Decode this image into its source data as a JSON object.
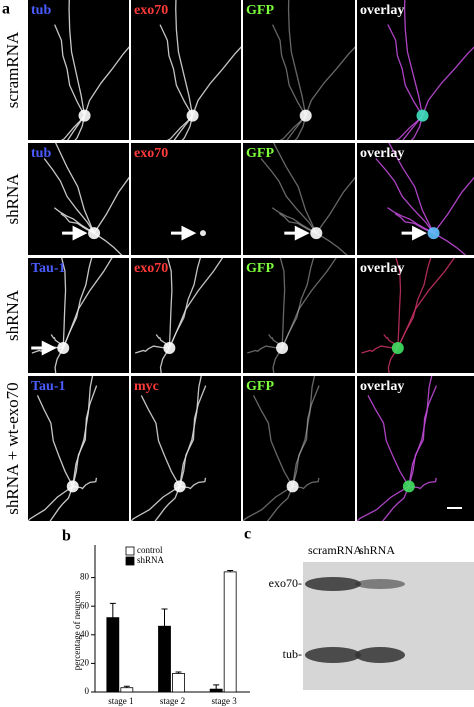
{
  "panel_a": {
    "label": "a",
    "rows": [
      {
        "label": "scramRNA",
        "channels": [
          "tub",
          "exo70",
          "GFP",
          "overlay"
        ]
      },
      {
        "label": "shRNA",
        "channels": [
          "tub",
          "exo70",
          "GFP",
          "overlay"
        ]
      },
      {
        "label": "shRNA",
        "channels": [
          "Tau-1",
          "exo70",
          "GFP",
          "overlay"
        ]
      },
      {
        "label": "shRNA + wt-exo70",
        "channels": [
          "Tau-1",
          "myc",
          "GFP",
          "overlay"
        ]
      }
    ]
  },
  "chart_data": {
    "type": "bar",
    "label": "b",
    "y_label": "percentage of neurons",
    "categories": [
      "stage 1",
      "stage 2",
      "stage 3"
    ],
    "series": [
      {
        "name": "control",
        "color": "#ffffff",
        "values": [
          3,
          13,
          84
        ],
        "errors": [
          1,
          1,
          1
        ]
      },
      {
        "name": "shRNA",
        "color": "#000000",
        "values": [
          52,
          46,
          2
        ],
        "errors": [
          10,
          12,
          3
        ]
      }
    ],
    "ylim": [
      0,
      100
    ],
    "yticks": [
      0,
      20,
      40,
      60,
      80
    ],
    "legend": "upper left"
  },
  "panel_c": {
    "label": "c",
    "lanes": [
      "scramRNA",
      "shRNA"
    ],
    "bands": [
      "exo70-",
      "tub-"
    ]
  }
}
